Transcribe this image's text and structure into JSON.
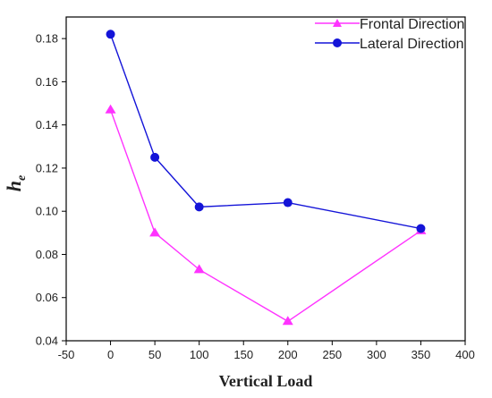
{
  "chart_data": {
    "type": "line",
    "xlabel": "Vertical Load",
    "ylabel": "h",
    "ylabel_subscript": "e",
    "xlim": [
      -50,
      400
    ],
    "ylim": [
      0.04,
      0.19
    ],
    "xticks": [
      -50,
      0,
      50,
      100,
      150,
      200,
      250,
      300,
      350,
      400
    ],
    "xtick_labels": [
      "-50",
      "0",
      "50",
      "100",
      "150",
      "200",
      "250",
      "300",
      "350",
      "400"
    ],
    "yticks": [
      0.04,
      0.06,
      0.08,
      0.1,
      0.12,
      0.14,
      0.16,
      0.18
    ],
    "ytick_labels": [
      "0.04",
      "0.06",
      "0.08",
      "0.10",
      "0.12",
      "0.14",
      "0.16",
      "0.18"
    ],
    "grid": false,
    "legend_position": "top-right",
    "series": [
      {
        "name": "Frontal Direction",
        "marker": "triangle",
        "color": "#ff33ff",
        "x": [
          0,
          50,
          100,
          200,
          350
        ],
        "y": [
          0.147,
          0.09,
          0.073,
          0.049,
          0.091
        ]
      },
      {
        "name": "Lateral Direction",
        "marker": "circle",
        "color": "#1414d8",
        "x": [
          0,
          50,
          100,
          200,
          350
        ],
        "y": [
          0.182,
          0.125,
          0.102,
          0.104,
          0.092
        ]
      }
    ]
  }
}
